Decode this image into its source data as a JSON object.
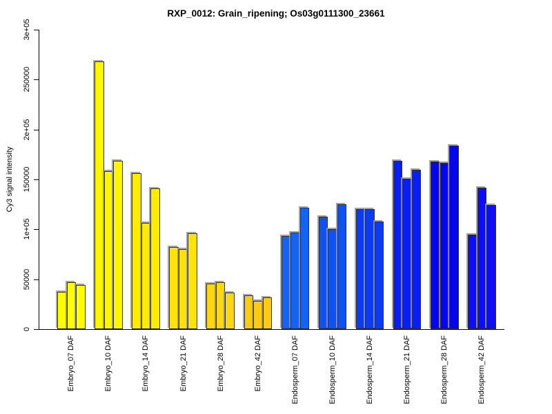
{
  "chart_data": {
    "type": "bar",
    "title": "RXP_0012: Grain_ripening; Os03g0111300_23661",
    "xlabel": "",
    "ylabel": "Cy3 signal intensity",
    "ylim": [
      0,
      300000
    ],
    "grid": false,
    "legend": null,
    "bar_border_color": "#303030",
    "bar_shadow_color": "#969696",
    "yticks": [
      {
        "value": 0,
        "label": "0"
      },
      {
        "value": 50000,
        "label": "50000"
      },
      {
        "value": 100000,
        "label": "1e+05"
      },
      {
        "value": 150000,
        "label": "150000"
      },
      {
        "value": 200000,
        "label": "2e+05"
      },
      {
        "value": 250000,
        "label": "250000"
      },
      {
        "value": 300000,
        "label": "3e+05"
      }
    ],
    "groups": [
      {
        "label": "Embryo_07 DAF",
        "color": "#FFFF00",
        "values": [
          37000,
          47000,
          44000
        ]
      },
      {
        "label": "Embryo_10 DAF",
        "color": "#FFF600",
        "values": [
          268000,
          158500,
          168500
        ]
      },
      {
        "label": "Embryo_14 DAF",
        "color": "#FFEC00",
        "values": [
          156500,
          106500,
          141000
        ]
      },
      {
        "label": "Embryo_21 DAF",
        "color": "#FFE10C",
        "values": [
          82500,
          80500,
          96000
        ]
      },
      {
        "label": "Embryo_28 DAF",
        "color": "#FBD714",
        "values": [
          45500,
          47000,
          36500
        ]
      },
      {
        "label": "Embryo_42 DAF",
        "color": "#FBCB18",
        "values": [
          34000,
          28000,
          32000
        ]
      },
      {
        "label": "Endosperm_07 DAF",
        "color": "#1463F2",
        "values": [
          93500,
          97000,
          122000
        ]
      },
      {
        "label": "Endosperm_10 DAF",
        "color": "#0F52F0",
        "values": [
          113000,
          100000,
          125000
        ]
      },
      {
        "label": "Endosperm_14 DAF",
        "color": "#0C3AF0",
        "values": [
          120000,
          120500,
          107500
        ]
      },
      {
        "label": "Endosperm_21 DAF",
        "color": "#081FF0",
        "values": [
          169000,
          150500,
          159500
        ]
      },
      {
        "label": "Endosperm_28 DAF",
        "color": "#0505F0",
        "values": [
          168000,
          166500,
          184000
        ]
      },
      {
        "label": "Endosperm_42 DAF",
        "color": "#0D0DF6",
        "values": [
          94500,
          142000,
          124500
        ]
      }
    ]
  }
}
